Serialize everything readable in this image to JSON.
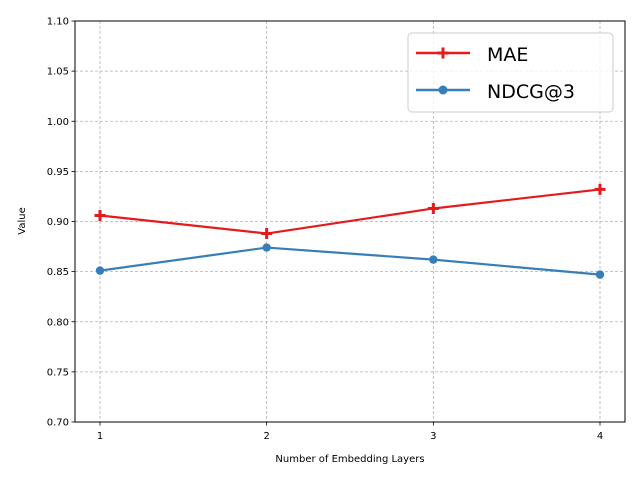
{
  "chart_data": {
    "type": "line",
    "title": "",
    "xlabel": "Number of Embedding Layers",
    "ylabel": "Value",
    "x": [
      1,
      2,
      3,
      4
    ],
    "x_tick_labels": [
      "1",
      "2",
      "3",
      "4"
    ],
    "ylim": [
      0.7,
      1.1
    ],
    "y_ticks": [
      0.7,
      0.75,
      0.8,
      0.85,
      0.9,
      0.95,
      1.0,
      1.05,
      1.1
    ],
    "y_tick_labels": [
      "0.70",
      "0.75",
      "0.80",
      "0.85",
      "0.90",
      "0.95",
      "1.00",
      "1.05",
      "1.10"
    ],
    "grid": true,
    "legend_position": "top-right",
    "series": [
      {
        "name": "MAE",
        "values": [
          0.906,
          0.888,
          0.913,
          0.932
        ],
        "color": "#e41a1c",
        "marker": "plus"
      },
      {
        "name": "NDCG@3",
        "values": [
          0.851,
          0.874,
          0.862,
          0.847
        ],
        "color": "#377eb8",
        "marker": "circle"
      }
    ]
  }
}
